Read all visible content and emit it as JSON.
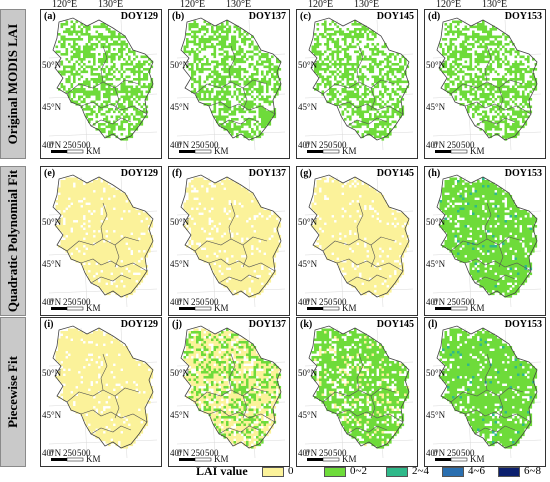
{
  "longitude_labels": [
    "120°E",
    "130°E"
  ],
  "latitude_labels": [
    "50°N",
    "45°N",
    "40°N"
  ],
  "scale_bar": {
    "ticks": [
      "0",
      "250",
      "500"
    ],
    "unit": "KM"
  },
  "rows": [
    {
      "label": "Original MODIS LAI",
      "panels": [
        {
          "letter": "(a)",
          "doy": "DOY129",
          "level": 1
        },
        {
          "letter": "(b)",
          "doy": "DOY137",
          "level": 1
        },
        {
          "letter": "(c)",
          "doy": "DOY145",
          "level": 1
        },
        {
          "letter": "(d)",
          "doy": "DOY153",
          "level": 1
        }
      ]
    },
    {
      "label": "Quadratic Polynomial Fit",
      "panels": [
        {
          "letter": "(e)",
          "doy": "DOY129",
          "level": 0
        },
        {
          "letter": "(f)",
          "doy": "DOY137",
          "level": 0
        },
        {
          "letter": "(g)",
          "doy": "DOY145",
          "level": 0
        },
        {
          "letter": "(h)",
          "doy": "DOY153",
          "level": 3
        }
      ]
    },
    {
      "label": "Piecewise Fit",
      "panels": [
        {
          "letter": "(i)",
          "doy": "DOY129",
          "level": 0
        },
        {
          "letter": "(j)",
          "doy": "DOY137",
          "level": 1.5
        },
        {
          "letter": "(k)",
          "doy": "DOY145",
          "level": 2.5
        },
        {
          "letter": "(l)",
          "doy": "DOY153",
          "level": 3
        }
      ]
    }
  ],
  "legend": {
    "title": "LAI value",
    "classes": [
      {
        "label": "0",
        "color": "#fbf29a"
      },
      {
        "label": "0~2",
        "color": "#6edb3a"
      },
      {
        "label": "2~4",
        "color": "#2fb98a"
      },
      {
        "label": "4~6",
        "color": "#2a6fb0"
      },
      {
        "label": "6~8",
        "color": "#0b1f6e"
      }
    ]
  }
}
